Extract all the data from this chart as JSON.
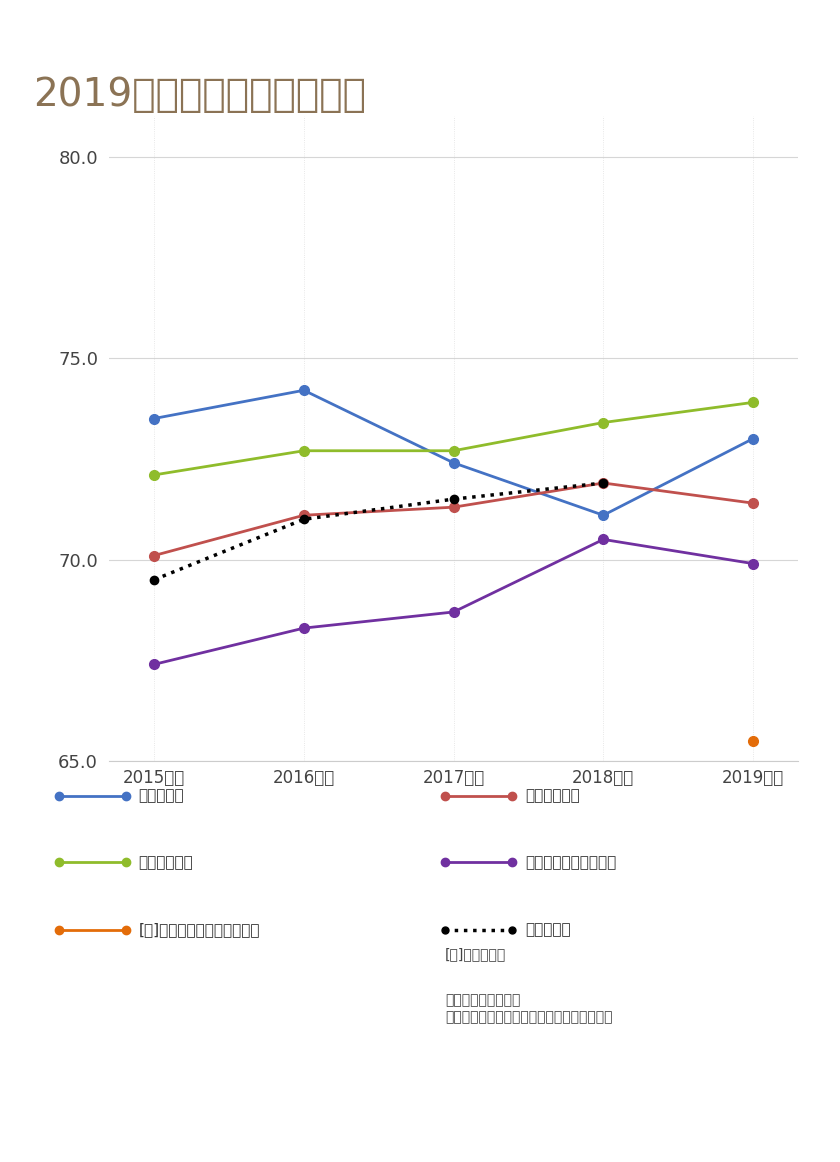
{
  "title": "2019年度　第５回調査結果",
  "title_color": "#8B7355",
  "title_fontsize": 28,
  "background_color": "#ffffff",
  "years": [
    "2015年度",
    "2016年度",
    "2017年度",
    "2018年度",
    "2019年度"
  ],
  "x_values": [
    0,
    1,
    2,
    3,
    4
  ],
  "ylim": [
    65.0,
    81.0
  ],
  "yticks": [
    65.0,
    70.0,
    75.0,
    80.0
  ],
  "series": {
    "宅配便平均": {
      "values": [
        73.5,
        74.2,
        72.4,
        71.1,
        73.0
      ],
      "color": "#4472C4",
      "marker": "o",
      "linewidth": 2.0,
      "linestyle": "-"
    },
    "損害保険平均": {
      "values": [
        72.1,
        72.7,
        72.7,
        73.4,
        73.9
      ],
      "color": "#8fbc2b",
      "marker": "o",
      "linewidth": 2.0,
      "linestyle": "-"
    },
    "生命保険平均": {
      "values": [
        70.1,
        71.1,
        71.3,
        71.9,
        71.4
      ],
      "color": "#C0504D",
      "marker": "o",
      "linewidth": 2.0,
      "linestyle": "-"
    },
    "クレジットカード平均": {
      "values": [
        67.4,
        68.3,
        68.7,
        70.5,
        69.9
      ],
      "color": "#7030A0",
      "marker": "o",
      "linewidth": 2.0,
      "linestyle": "-"
    },
    "[特]キャッシュレス決済平均": {
      "values": [
        null,
        null,
        null,
        null,
        65.5
      ],
      "color": "#E36C09",
      "marker": "o",
      "linewidth": 2.0,
      "linestyle": "-"
    },
    "全業種平均": {
      "values": [
        69.5,
        71.0,
        71.5,
        71.9,
        null
      ],
      "color": "#000000",
      "marker": "o",
      "linewidth": 2.5,
      "linestyle": ":"
    }
  },
  "legend_items": [
    {
      "label": "宅配便平均",
      "color": "#4472C4",
      "linestyle": "-",
      "col": 0
    },
    {
      "label": "生命保険平均",
      "color": "#C0504D",
      "linestyle": "-",
      "col": 1
    },
    {
      "label": "損害保険平均",
      "color": "#8fbc2b",
      "linestyle": "-",
      "col": 0
    },
    {
      "label": "クレジットカード平均",
      "color": "#7030A0",
      "linestyle": "-",
      "col": 1
    },
    {
      "label": "[特]キャッシュレス決済平均",
      "color": "#E36C09",
      "linestyle": "-",
      "col": 0
    },
    {
      "label": "全業種平均",
      "color": "#000000",
      "linestyle": ":",
      "col": 1
    }
  ],
  "note1": "[特]：特別調査",
  "note2": "各業種の平均には、\nランキング対象外調査企業の結果も含みます",
  "grid_color": "#cccccc",
  "grid_alpha": 0.8
}
